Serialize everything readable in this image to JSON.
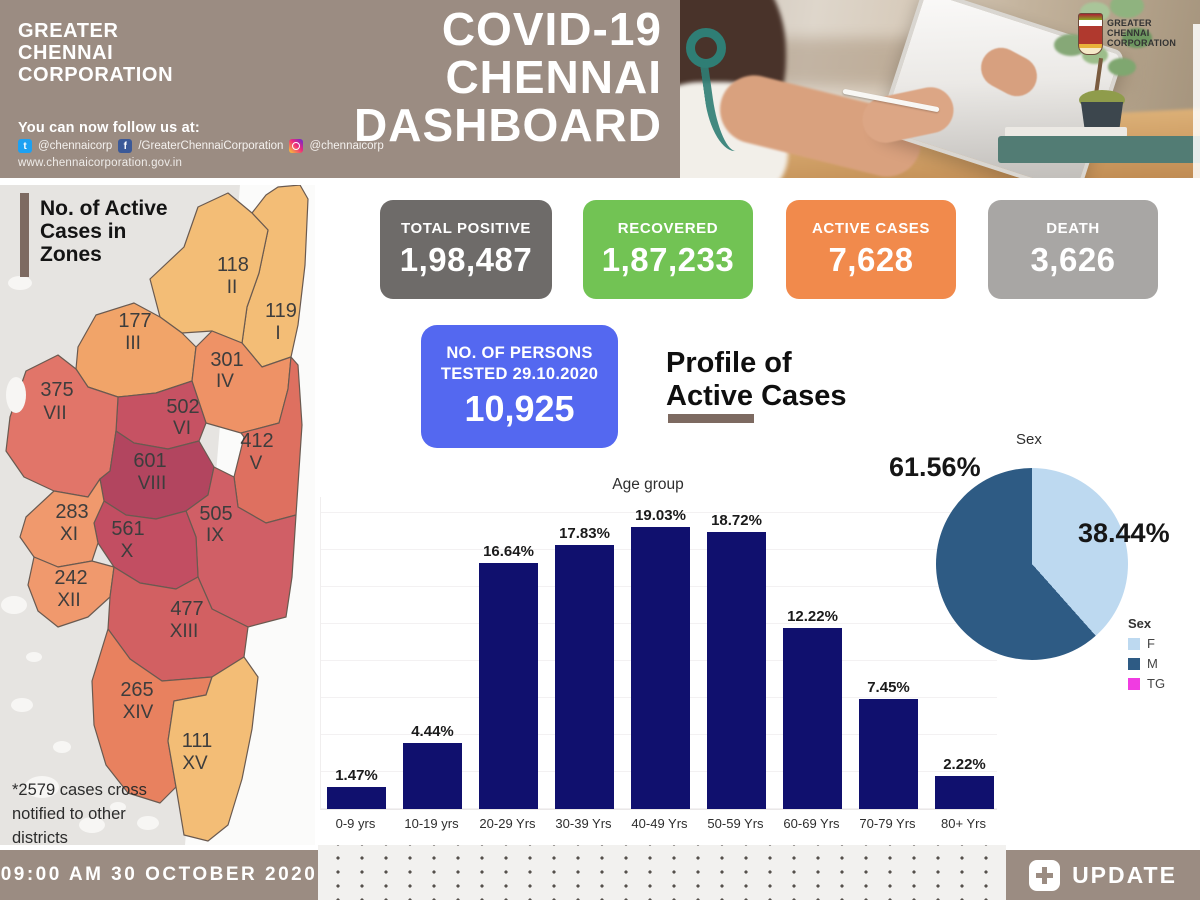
{
  "header": {
    "org_name_lines": [
      "GREATER",
      "CHENNAI",
      "CORPORATION"
    ],
    "follow_text": "You can now follow us at:",
    "social": {
      "twitter": "@chennaicorp",
      "facebook": "/GreaterChennaiCorporation",
      "instagram": "@chennaicorp",
      "website": "www.chennaicorporation.gov.in"
    },
    "title_lines": [
      "COVID-19",
      "CHENNAI",
      "DASHBOARD"
    ],
    "logo_text_lines": [
      "GREATER",
      "CHENNAI",
      "CORPORATION"
    ]
  },
  "stats": [
    {
      "label": "TOTAL POSITIVE",
      "value": "1,98,487",
      "color": "#6e6b69"
    },
    {
      "label": "RECOVERED",
      "value": "1,87,233",
      "color": "#72c354"
    },
    {
      "label": "ACTIVE CASES",
      "value": "7,628",
      "color": "#f18a4c"
    },
    {
      "label": "DEATH",
      "value": "3,626",
      "color": "#a8a6a4"
    }
  ],
  "tested_card": {
    "line1": "NO. OF PERSONS",
    "line2": "TESTED 29.10.2020",
    "value": "10,925",
    "color": "#5468f0"
  },
  "profile_title_lines": [
    "Profile of",
    "Active Cases"
  ],
  "map": {
    "heading_lines": [
      "No. of Active",
      "Cases in",
      "Zones"
    ],
    "footnote_lines": [
      "*2579 cases cross",
      "notified to other",
      "districts"
    ],
    "zones": [
      {
        "cases": "119",
        "roman": "I",
        "color": "#f3bd76"
      },
      {
        "cases": "118",
        "roman": "II",
        "color": "#f3bd76"
      },
      {
        "cases": "177",
        "roman": "III",
        "color": "#f1a469"
      },
      {
        "cases": "301",
        "roman": "IV",
        "color": "#ee9266"
      },
      {
        "cases": "412",
        "roman": "V",
        "color": "#de7060"
      },
      {
        "cases": "502",
        "roman": "VI",
        "color": "#c65263"
      },
      {
        "cases": "375",
        "roman": "VII",
        "color": "#e17569"
      },
      {
        "cases": "601",
        "roman": "VIII",
        "color": "#b2455f"
      },
      {
        "cases": "505",
        "roman": "IX",
        "color": "#d05f66"
      },
      {
        "cases": "561",
        "roman": "X",
        "color": "#c24e62"
      },
      {
        "cases": "283",
        "roman": "XI",
        "color": "#f0996d"
      },
      {
        "cases": "242",
        "roman": "XII",
        "color": "#f0996d"
      },
      {
        "cases": "477",
        "roman": "XIII",
        "color": "#d26062"
      },
      {
        "cases": "265",
        "roman": "XIV",
        "color": "#e8815f"
      },
      {
        "cases": "111",
        "roman": "XV",
        "color": "#f3bd76"
      }
    ]
  },
  "chart_data": [
    {
      "type": "bar",
      "title": "Age group",
      "categories": [
        "0-9 yrs",
        "10-19 yrs",
        "20-29 Yrs",
        "30-39 Yrs",
        "40-49 Yrs",
        "50-59 Yrs",
        "60-69 Yrs",
        "70-79 Yrs",
        "80+ Yrs"
      ],
      "values": [
        1.47,
        4.44,
        16.64,
        17.83,
        19.03,
        18.72,
        12.22,
        7.45,
        2.22
      ],
      "labels": [
        "1.47%",
        "4.44%",
        "16.64%",
        "17.83%",
        "19.03%",
        "18.72%",
        "12.22%",
        "7.45%",
        "2.22%"
      ],
      "bar_color": "#10106e",
      "xlabel": "",
      "ylabel": "",
      "ylim": [
        0,
        21
      ],
      "grid": true
    },
    {
      "type": "pie",
      "title": "Sex",
      "legend_title": "Sex",
      "categories": [
        "F",
        "M",
        "TG"
      ],
      "values": [
        38.44,
        61.56,
        0.0
      ],
      "labels": [
        "38.44%",
        "61.56%"
      ],
      "colors": [
        "#bdd9f0",
        "#2e5b84",
        "#f03ce1"
      ],
      "legend_position": "bottom-right"
    }
  ],
  "footer": {
    "timestamp": "09:00 AM 30 OCTOBER 2020",
    "update_label": "UPDATE"
  }
}
